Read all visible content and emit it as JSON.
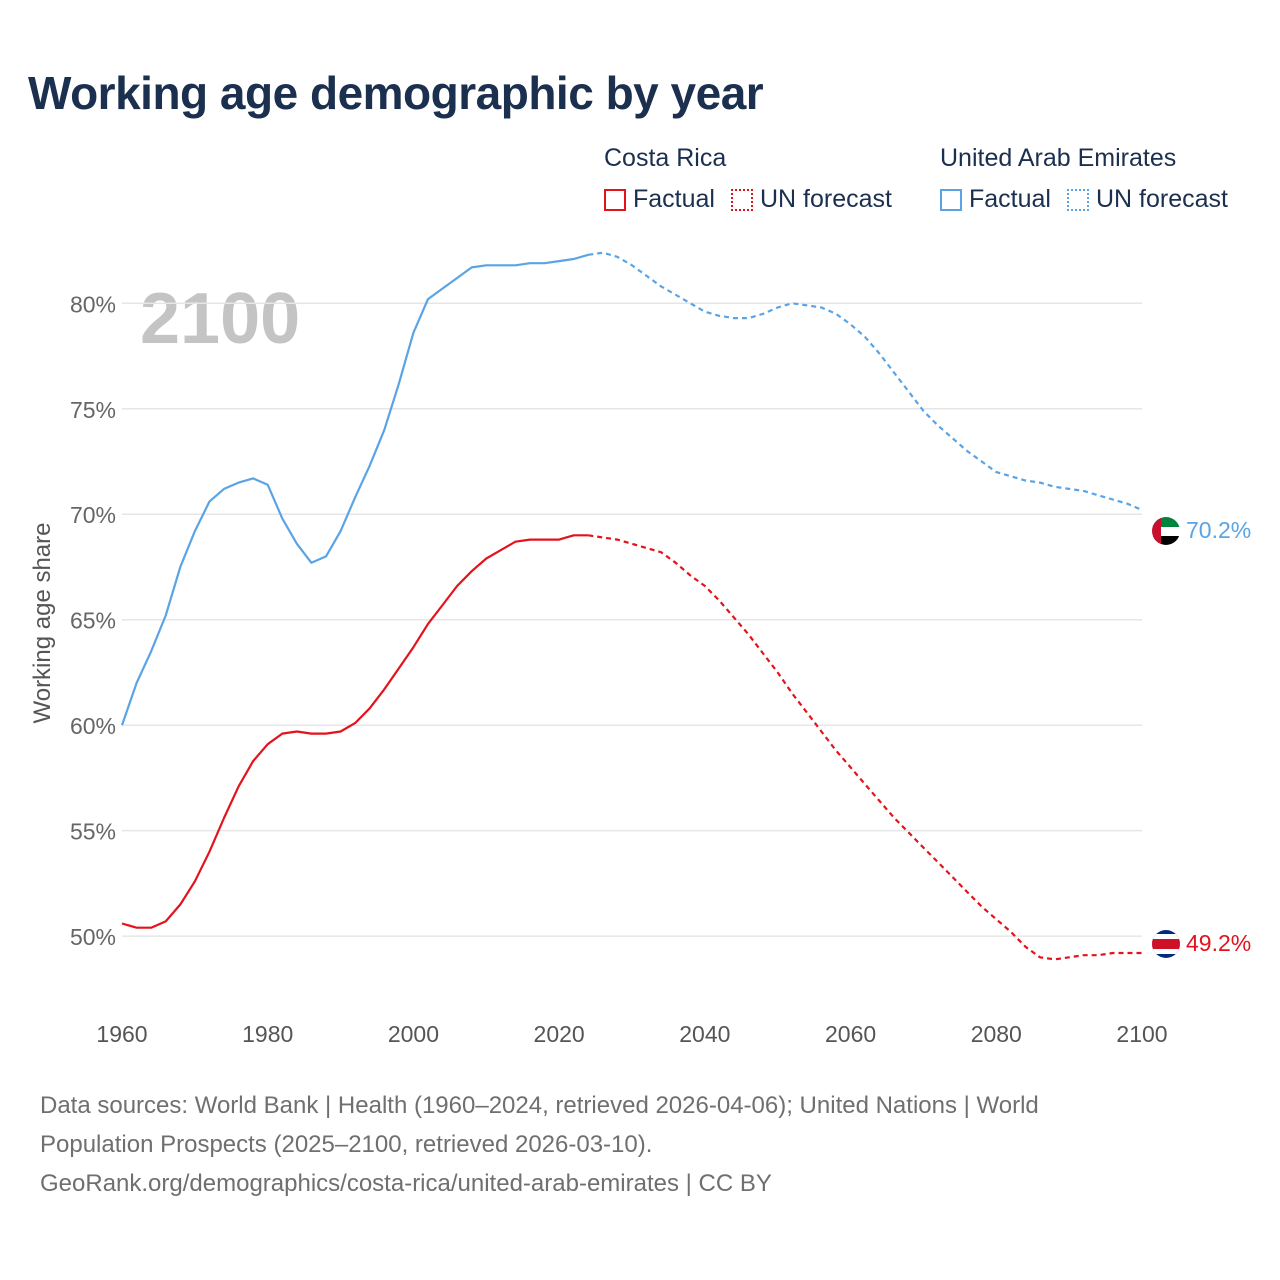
{
  "title": "Working age demographic by year",
  "legend": {
    "groups": [
      {
        "country": "Costa Rica",
        "factual": "Factual",
        "forecast": "UN forecast",
        "color": "#e3121b"
      },
      {
        "country": "United Arab Emirates",
        "factual": "Factual",
        "forecast": "UN forecast",
        "color": "#5aa4e6"
      }
    ]
  },
  "year_watermark": "2100",
  "sources": {
    "line1": "Data sources: World Bank | Health (1960–2024, retrieved 2026-04-06); United Nations | World",
    "line2": "Population Prospects (2025–2100, retrieved 2026-03-10).",
    "line3": "GeoRank.org/demographics/costa-rica/united-arab-emirates | CC BY"
  },
  "chart_data": {
    "type": "line",
    "ylabel": "Working age share",
    "xlim": [
      1960,
      2100
    ],
    "ylim": [
      46.5,
      83
    ],
    "x_ticks": [
      1960,
      1980,
      2000,
      2020,
      2040,
      2060,
      2080,
      2100
    ],
    "y_ticks": [
      50,
      55,
      60,
      65,
      70,
      75,
      80
    ],
    "y_tick_labels": [
      "50%",
      "55%",
      "60%",
      "65%",
      "70%",
      "75%",
      "80%"
    ],
    "grid": true,
    "factual_end_year": 2024,
    "series": [
      {
        "name": "Costa Rica",
        "color": "#e3121b",
        "end_label": "49.2%",
        "points": [
          [
            1960,
            50.6
          ],
          [
            1962,
            50.4
          ],
          [
            1964,
            50.4
          ],
          [
            1966,
            50.7
          ],
          [
            1968,
            51.5
          ],
          [
            1970,
            52.6
          ],
          [
            1972,
            54.0
          ],
          [
            1974,
            55.6
          ],
          [
            1976,
            57.1
          ],
          [
            1978,
            58.3
          ],
          [
            1980,
            59.1
          ],
          [
            1982,
            59.6
          ],
          [
            1984,
            59.7
          ],
          [
            1986,
            59.6
          ],
          [
            1988,
            59.6
          ],
          [
            1990,
            59.7
          ],
          [
            1992,
            60.1
          ],
          [
            1994,
            60.8
          ],
          [
            1996,
            61.7
          ],
          [
            1998,
            62.7
          ],
          [
            2000,
            63.7
          ],
          [
            2002,
            64.8
          ],
          [
            2004,
            65.7
          ],
          [
            2006,
            66.6
          ],
          [
            2008,
            67.3
          ],
          [
            2010,
            67.9
          ],
          [
            2012,
            68.3
          ],
          [
            2014,
            68.7
          ],
          [
            2016,
            68.8
          ],
          [
            2018,
            68.8
          ],
          [
            2020,
            68.8
          ],
          [
            2022,
            69.0
          ],
          [
            2024,
            69.0
          ],
          [
            2026,
            68.9
          ],
          [
            2028,
            68.8
          ],
          [
            2030,
            68.6
          ],
          [
            2032,
            68.4
          ],
          [
            2034,
            68.2
          ],
          [
            2036,
            67.7
          ],
          [
            2038,
            67.1
          ],
          [
            2040,
            66.6
          ],
          [
            2042,
            65.9
          ],
          [
            2044,
            65.1
          ],
          [
            2046,
            64.3
          ],
          [
            2048,
            63.4
          ],
          [
            2050,
            62.5
          ],
          [
            2052,
            61.5
          ],
          [
            2054,
            60.6
          ],
          [
            2056,
            59.7
          ],
          [
            2058,
            58.8
          ],
          [
            2060,
            58.0
          ],
          [
            2062,
            57.2
          ],
          [
            2064,
            56.4
          ],
          [
            2066,
            55.6
          ],
          [
            2068,
            54.9
          ],
          [
            2070,
            54.2
          ],
          [
            2072,
            53.5
          ],
          [
            2074,
            52.8
          ],
          [
            2076,
            52.1
          ],
          [
            2078,
            51.4
          ],
          [
            2080,
            50.8
          ],
          [
            2082,
            50.2
          ],
          [
            2084,
            49.5
          ],
          [
            2086,
            49.0
          ],
          [
            2088,
            48.9
          ],
          [
            2090,
            49.0
          ],
          [
            2092,
            49.1
          ],
          [
            2094,
            49.1
          ],
          [
            2096,
            49.2
          ],
          [
            2098,
            49.2
          ],
          [
            2100,
            49.2
          ]
        ]
      },
      {
        "name": "United Arab Emirates",
        "color": "#5aa4e6",
        "end_label": "70.2%",
        "points": [
          [
            1960,
            60.0
          ],
          [
            1962,
            62.0
          ],
          [
            1964,
            63.5
          ],
          [
            1966,
            65.2
          ],
          [
            1968,
            67.5
          ],
          [
            1970,
            69.2
          ],
          [
            1972,
            70.6
          ],
          [
            1974,
            71.2
          ],
          [
            1976,
            71.5
          ],
          [
            1978,
            71.7
          ],
          [
            1980,
            71.4
          ],
          [
            1982,
            69.8
          ],
          [
            1984,
            68.6
          ],
          [
            1986,
            67.7
          ],
          [
            1988,
            68.0
          ],
          [
            1990,
            69.2
          ],
          [
            1992,
            70.8
          ],
          [
            1994,
            72.3
          ],
          [
            1996,
            74.0
          ],
          [
            1998,
            76.2
          ],
          [
            2000,
            78.6
          ],
          [
            2002,
            80.2
          ],
          [
            2004,
            80.7
          ],
          [
            2006,
            81.2
          ],
          [
            2008,
            81.7
          ],
          [
            2010,
            81.8
          ],
          [
            2012,
            81.8
          ],
          [
            2014,
            81.8
          ],
          [
            2016,
            81.9
          ],
          [
            2018,
            81.9
          ],
          [
            2020,
            82.0
          ],
          [
            2022,
            82.1
          ],
          [
            2024,
            82.3
          ],
          [
            2026,
            82.4
          ],
          [
            2028,
            82.2
          ],
          [
            2030,
            81.8
          ],
          [
            2032,
            81.3
          ],
          [
            2034,
            80.8
          ],
          [
            2036,
            80.4
          ],
          [
            2038,
            80.0
          ],
          [
            2040,
            79.6
          ],
          [
            2042,
            79.4
          ],
          [
            2044,
            79.3
          ],
          [
            2046,
            79.3
          ],
          [
            2048,
            79.5
          ],
          [
            2050,
            79.8
          ],
          [
            2052,
            80.0
          ],
          [
            2054,
            79.9
          ],
          [
            2056,
            79.8
          ],
          [
            2058,
            79.5
          ],
          [
            2060,
            79.0
          ],
          [
            2062,
            78.4
          ],
          [
            2064,
            77.6
          ],
          [
            2066,
            76.7
          ],
          [
            2068,
            75.8
          ],
          [
            2070,
            74.9
          ],
          [
            2072,
            74.2
          ],
          [
            2074,
            73.6
          ],
          [
            2076,
            73.0
          ],
          [
            2078,
            72.5
          ],
          [
            2080,
            72.0
          ],
          [
            2082,
            71.8
          ],
          [
            2084,
            71.6
          ],
          [
            2086,
            71.5
          ],
          [
            2088,
            71.3
          ],
          [
            2090,
            71.2
          ],
          [
            2092,
            71.1
          ],
          [
            2094,
            70.9
          ],
          [
            2096,
            70.7
          ],
          [
            2098,
            70.5
          ],
          [
            2100,
            70.2
          ]
        ]
      }
    ]
  }
}
